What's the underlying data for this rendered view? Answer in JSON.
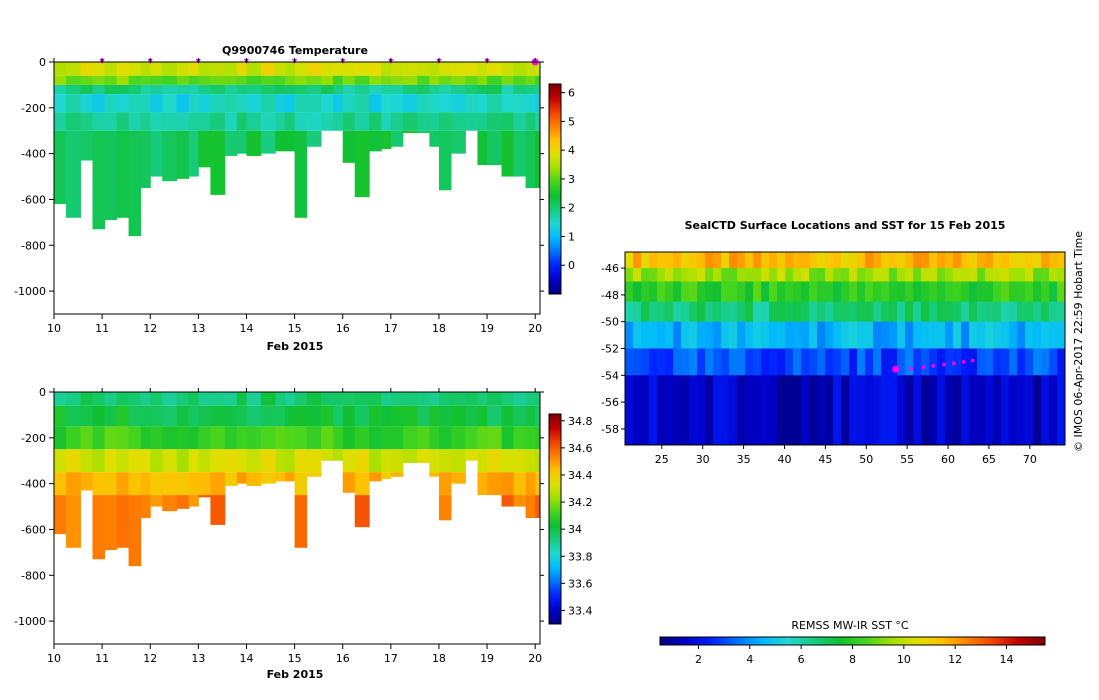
{
  "colors": {
    "profile_palette": [
      "#00007f",
      "#0000c8",
      "#0020ff",
      "#0070ff",
      "#00b8ff",
      "#20d8d0",
      "#18cc80",
      "#10c030",
      "#44d420",
      "#a0e000",
      "#e0e000",
      "#ffc000",
      "#ff8000",
      "#f04000",
      "#c00000",
      "#800000"
    ],
    "sst_palette": [
      "#00007f",
      "#0000c8",
      "#0020ff",
      "#0070ff",
      "#00b8ff",
      "#20d8d0",
      "#18cc80",
      "#10c030",
      "#44d420",
      "#a0e000",
      "#e0e000",
      "#ffc000",
      "#ff8000",
      "#f04000",
      "#c00000",
      "#800000"
    ],
    "track": "#ff00ff",
    "axis": "#000000"
  },
  "chart_data": [
    {
      "name": "temperature-section",
      "type": "heatmap",
      "title": "Q9900746  Temperature",
      "xlabel": "Feb 2015",
      "ylabel": "",
      "xlim": [
        10,
        20.1
      ],
      "ylim": [
        -1100,
        0
      ],
      "x_ticks": [
        10,
        11,
        12,
        13,
        14,
        15,
        16,
        17,
        18,
        19,
        20
      ],
      "y_ticks": [
        0,
        -200,
        -400,
        -600,
        -800,
        -1000
      ],
      "profile_times": [
        10.0,
        10.25,
        10.55,
        10.8,
        11.05,
        11.3,
        11.55,
        11.8,
        12.0,
        12.25,
        12.55,
        12.8,
        13.0,
        13.25,
        13.55,
        13.8,
        14.0,
        14.3,
        14.6,
        14.8,
        15.0,
        15.25,
        15.55,
        15.8,
        16.0,
        16.25,
        16.55,
        16.8,
        17.0,
        17.25,
        17.55,
        17.8,
        18.0,
        18.25,
        18.55,
        18.8,
        19.0,
        19.3,
        19.55,
        19.8,
        20.0,
        20.1
      ],
      "profile_max_depths": [
        620,
        680,
        430,
        730,
        690,
        680,
        760,
        550,
        500,
        520,
        510,
        500,
        460,
        580,
        410,
        400,
        410,
        400,
        390,
        390,
        680,
        370,
        300,
        300,
        440,
        590,
        390,
        380,
        370,
        310,
        310,
        370,
        560,
        400,
        300,
        450,
        450,
        500,
        500,
        550,
        550,
        550
      ],
      "layers": [
        {
          "top": 0,
          "bottom": 60,
          "value": 3.8
        },
        {
          "top": 60,
          "bottom": 100,
          "value": 3.1
        },
        {
          "top": 100,
          "bottom": 140,
          "value": 1.9
        },
        {
          "top": 140,
          "bottom": 220,
          "value": 1.4
        },
        {
          "top": 220,
          "bottom": 300,
          "value": 1.8
        },
        {
          "top": 300,
          "bottom": 1100,
          "value": 2.2
        }
      ],
      "surface_markers_days": [
        11,
        12,
        13,
        14,
        15,
        16,
        17,
        18,
        19,
        20
      ],
      "colorbar": {
        "min": -1,
        "max": 6.3,
        "ticks": [
          0,
          1,
          2,
          3,
          4,
          5,
          6
        ],
        "tick_labels": [
          "0",
          "1",
          "2",
          "3",
          "4",
          "5",
          "6"
        ]
      }
    },
    {
      "name": "salinity-section",
      "type": "heatmap",
      "title": "",
      "xlabel": "Feb 2015",
      "ylabel": "",
      "xlim": [
        10,
        20.1
      ],
      "ylim": [
        -1100,
        0
      ],
      "x_ticks": [
        10,
        11,
        12,
        13,
        14,
        15,
        16,
        17,
        18,
        19,
        20
      ],
      "y_ticks": [
        0,
        -200,
        -400,
        -600,
        -800,
        -1000
      ],
      "layers": [
        {
          "top": 0,
          "bottom": 60,
          "value": 33.95
        },
        {
          "top": 60,
          "bottom": 150,
          "value": 34.0
        },
        {
          "top": 150,
          "bottom": 250,
          "value": 34.1
        },
        {
          "top": 250,
          "bottom": 350,
          "value": 34.3
        },
        {
          "top": 350,
          "bottom": 450,
          "value": 34.45
        },
        {
          "top": 450,
          "bottom": 1100,
          "value": 34.55
        }
      ],
      "colorbar": {
        "min": 33.3,
        "max": 34.85,
        "ticks": [
          33.4,
          33.6,
          33.8,
          34,
          34.2,
          34.4,
          34.6,
          34.8
        ],
        "tick_labels": [
          "33.4",
          "33.6",
          "33.8",
          "34",
          "34.2",
          "34.4",
          "34.6",
          "34.8"
        ]
      }
    },
    {
      "name": "sst-map",
      "type": "heatmap",
      "title": "SealCTD Surface Locations and SST for 15 Feb 2015",
      "xlim": [
        20.5,
        74.3
      ],
      "ylim": [
        -59.2,
        -44.8
      ],
      "x_ticks": [
        25,
        30,
        35,
        40,
        45,
        50,
        55,
        60,
        65,
        70
      ],
      "y_ticks": [
        -46,
        -48,
        -50,
        -52,
        -54,
        -56,
        -58
      ],
      "sst_bands": [
        {
          "lat_top": -44.8,
          "lat_bottom": -46.0,
          "value": 11.5
        },
        {
          "lat_top": -46.0,
          "lat_bottom": -47.0,
          "value": 9.5
        },
        {
          "lat_top": -47.0,
          "lat_bottom": -48.5,
          "value": 8.0
        },
        {
          "lat_top": -48.5,
          "lat_bottom": -50.0,
          "value": 6.5
        },
        {
          "lat_top": -50.0,
          "lat_bottom": -52.0,
          "value": 4.5
        },
        {
          "lat_top": -52.0,
          "lat_bottom": -54.0,
          "value": 3.0
        },
        {
          "lat_top": -54.0,
          "lat_bottom": -59.2,
          "value": 1.5
        }
      ],
      "track": {
        "lon": [
          53.6,
          55.5,
          57.0,
          58.2,
          59.5,
          60.7,
          61.9,
          63.0
        ],
        "lat": [
          -53.55,
          -53.5,
          -53.4,
          -53.3,
          -53.2,
          -53.1,
          -53.0,
          -52.9
        ]
      },
      "colorbar": {
        "label": "REMSS MW-IR SST °C",
        "min": 0.5,
        "max": 15.5,
        "ticks": [
          2,
          4,
          6,
          8,
          10,
          12,
          14
        ],
        "tick_labels": [
          "2",
          "4",
          "6",
          "8",
          "10",
          "12",
          "14"
        ]
      }
    }
  ],
  "footer": {
    "credit": "©  IMOS 06-Apr-2017 22:59 Hobart Time"
  }
}
